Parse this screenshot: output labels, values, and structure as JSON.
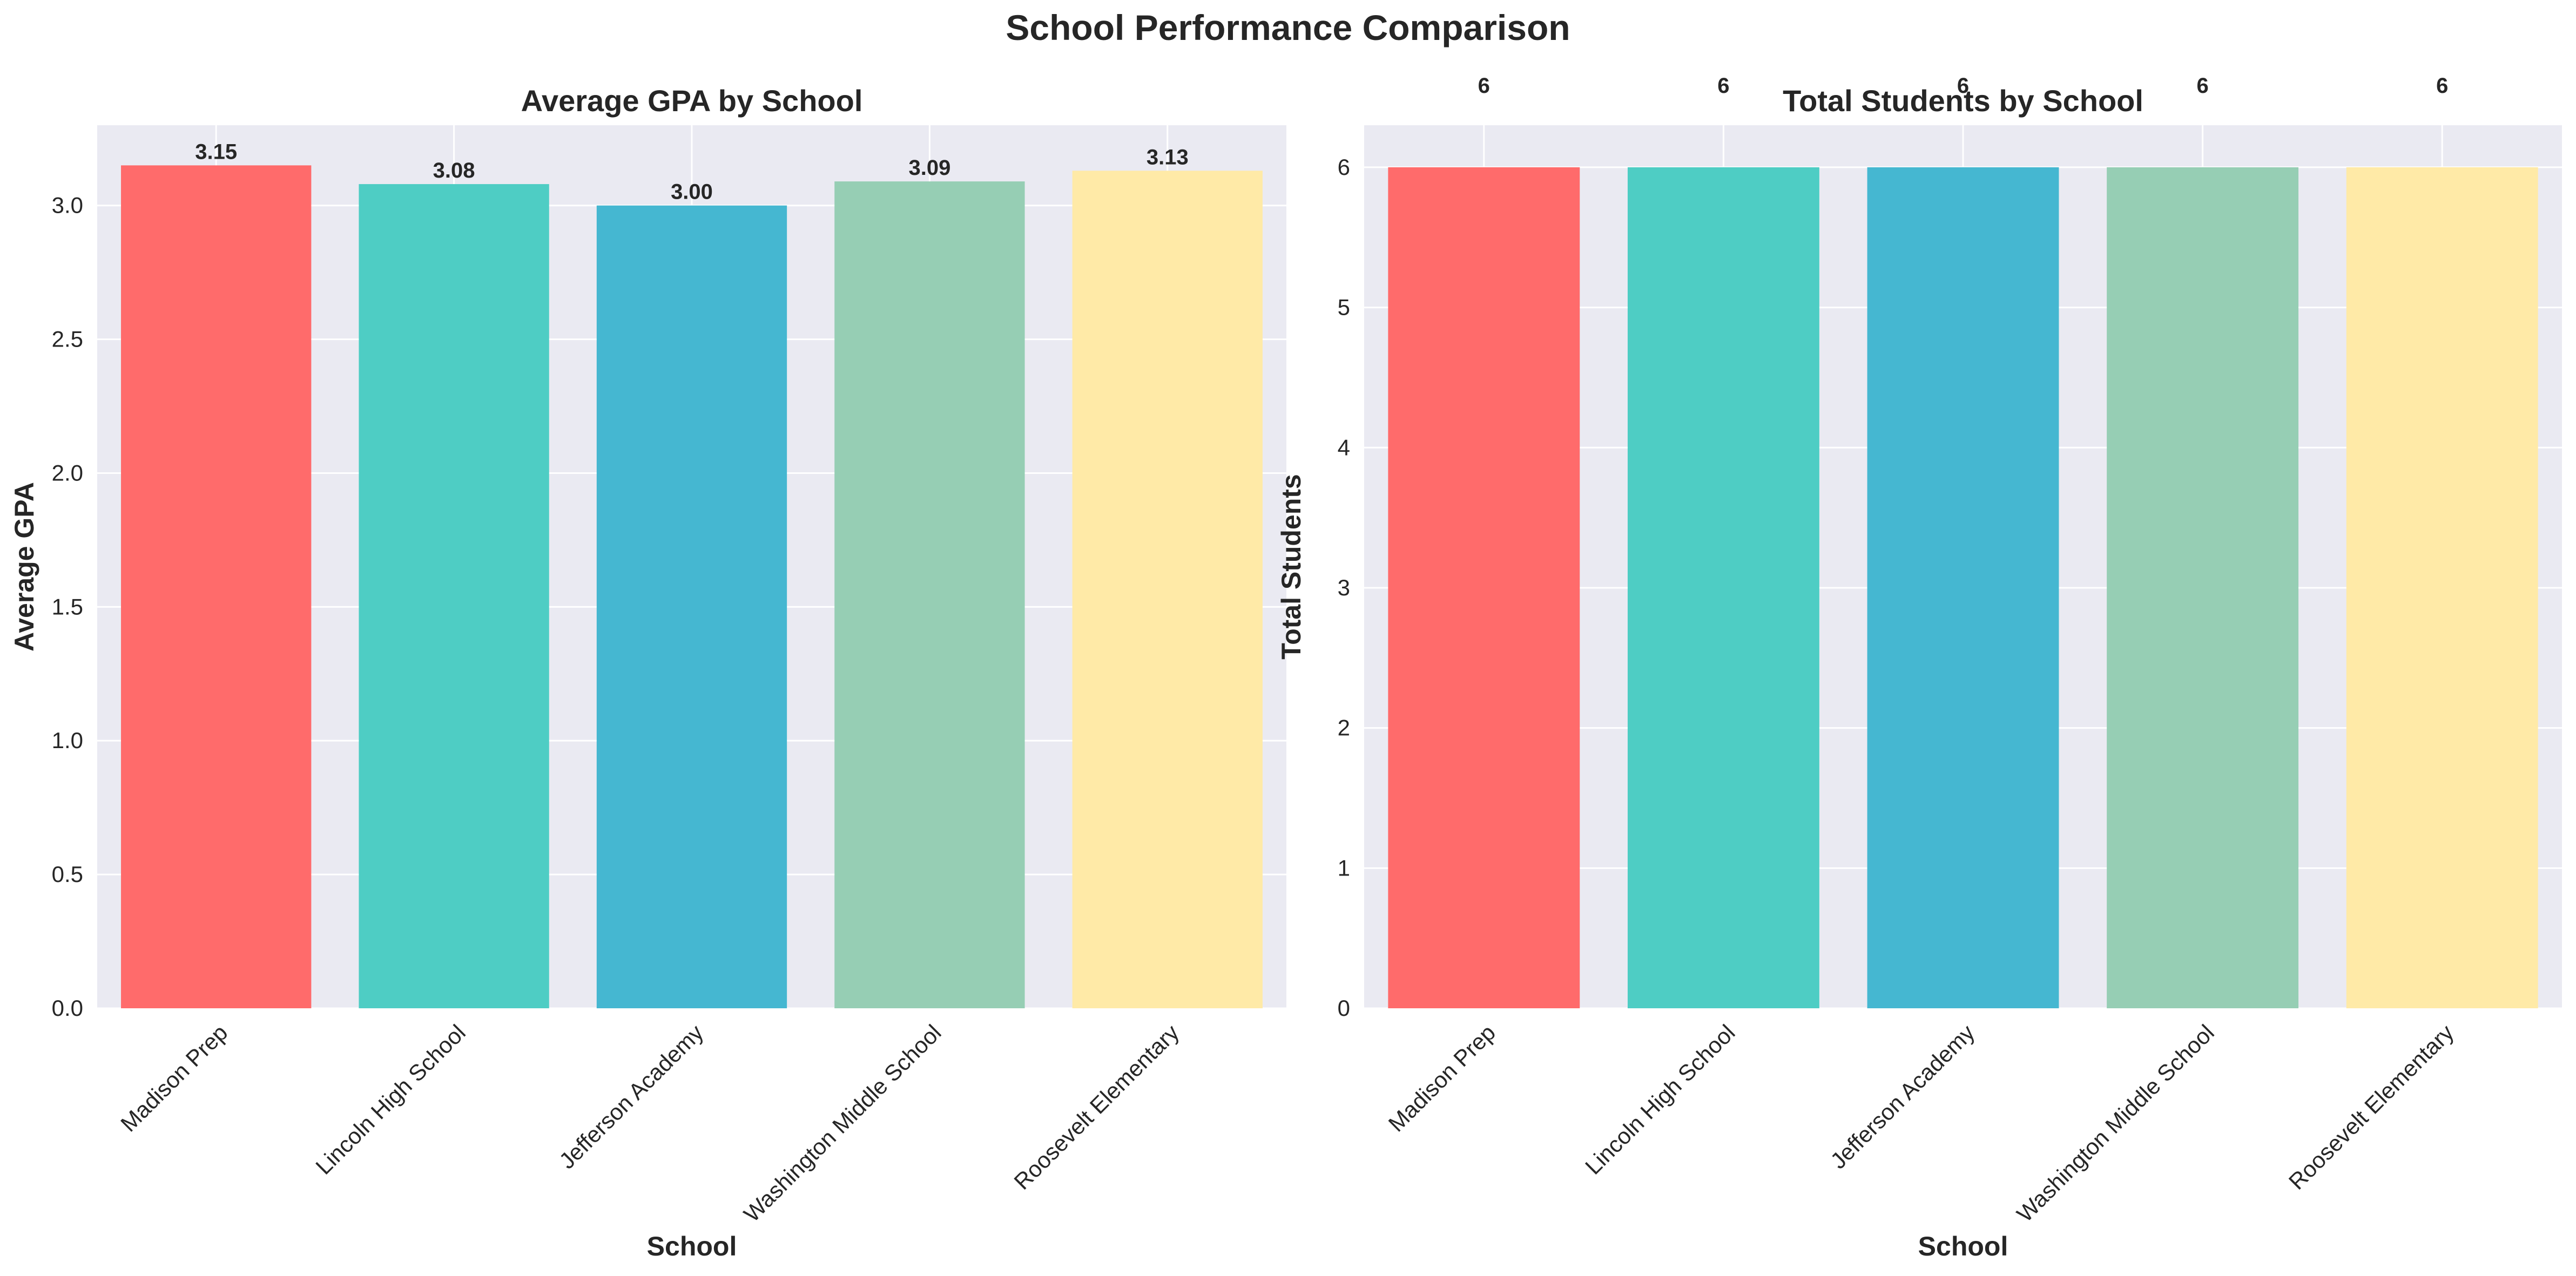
{
  "title": "School Performance Comparison",
  "chart_data": [
    {
      "type": "bar",
      "title": "Average GPA by School",
      "xlabel": "School",
      "ylabel": "Average GPA",
      "categories": [
        "Madison Prep",
        "Lincoln High School",
        "Jefferson Academy",
        "Washington Middle School",
        "Roosevelt Elementary"
      ],
      "values": [
        3.15,
        3.08,
        3.0,
        3.09,
        3.13
      ],
      "value_labels": [
        "3.15",
        "3.08",
        "3.00",
        "3.09",
        "3.13"
      ],
      "colors": [
        "#FF6B6B",
        "#4ECDC4",
        "#45B7D1",
        "#96CEB4",
        "#FFEAA7"
      ],
      "ylim": [
        0,
        3.3
      ],
      "yticks": [
        0.0,
        0.5,
        1.0,
        1.5,
        2.0,
        2.5,
        3.0
      ],
      "ytick_labels": [
        "0.0",
        "0.5",
        "1.0",
        "1.5",
        "2.0",
        "2.5",
        "3.0"
      ],
      "grid": true
    },
    {
      "type": "bar",
      "title": "Total Students by School",
      "xlabel": "School",
      "ylabel": "Total Students",
      "categories": [
        "Madison Prep",
        "Lincoln High School",
        "Jefferson Academy",
        "Washington Middle School",
        "Roosevelt Elementary"
      ],
      "values": [
        6,
        6,
        6,
        6,
        6
      ],
      "value_labels": [
        "6",
        "6",
        "6",
        "6",
        "6"
      ],
      "colors": [
        "#FF6B6B",
        "#4ECDC4",
        "#45B7D1",
        "#96CEB4",
        "#FFEAA7"
      ],
      "ylim": [
        0,
        6.3
      ],
      "yticks": [
        0,
        1,
        2,
        3,
        4,
        5,
        6
      ],
      "ytick_labels": [
        "0",
        "1",
        "2",
        "3",
        "4",
        "5",
        "6"
      ],
      "grid": true
    }
  ]
}
